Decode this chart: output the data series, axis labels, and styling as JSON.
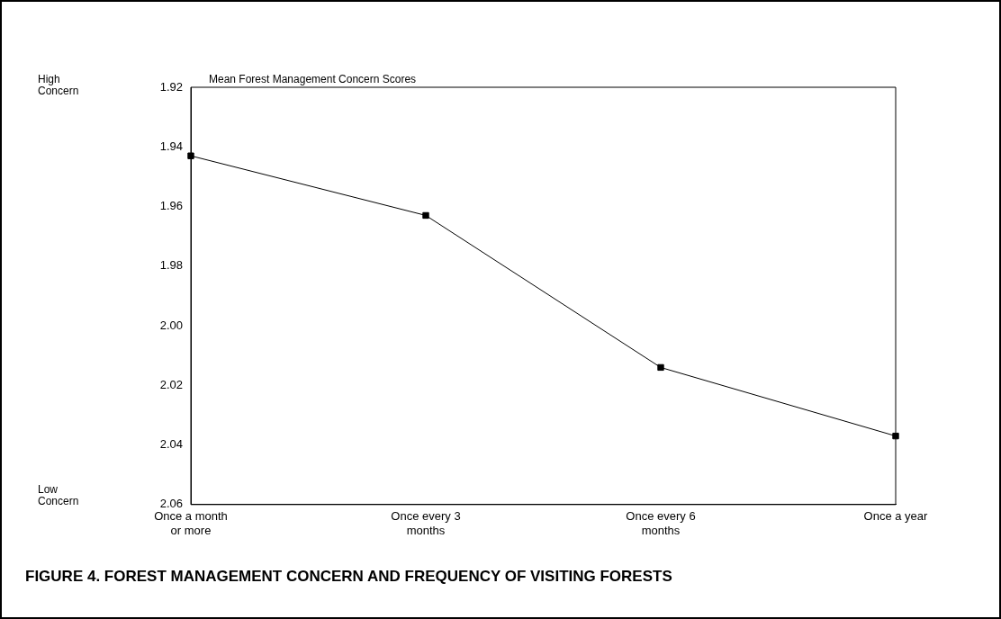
{
  "chart_data": {
    "type": "line",
    "title": "Mean Forest Management Concern Scores",
    "categories": [
      "Once a month or more",
      "Once every 3 months",
      "Once every 6 months",
      "Once a year"
    ],
    "series": [
      {
        "color": "#000000",
        "values": [
          1.943,
          1.963,
          2.014,
          2.037
        ]
      }
    ],
    "ylim": [
      2.06,
      1.92
    ],
    "yticks": [
      1.92,
      1.94,
      1.96,
      1.98,
      {
        "value": 2,
        "label": "2.00"
      },
      2.02,
      2.04,
      2.06
    ],
    "marker": "square",
    "line_style": "solid",
    "grid": false,
    "legend": false,
    "annotations": [
      "High Concern",
      "Low Concern",
      "FIGURE 4. FOREST MANAGEMENT CONCERN AND FREQUENCY OF VISITING FORESTS"
    ]
  }
}
